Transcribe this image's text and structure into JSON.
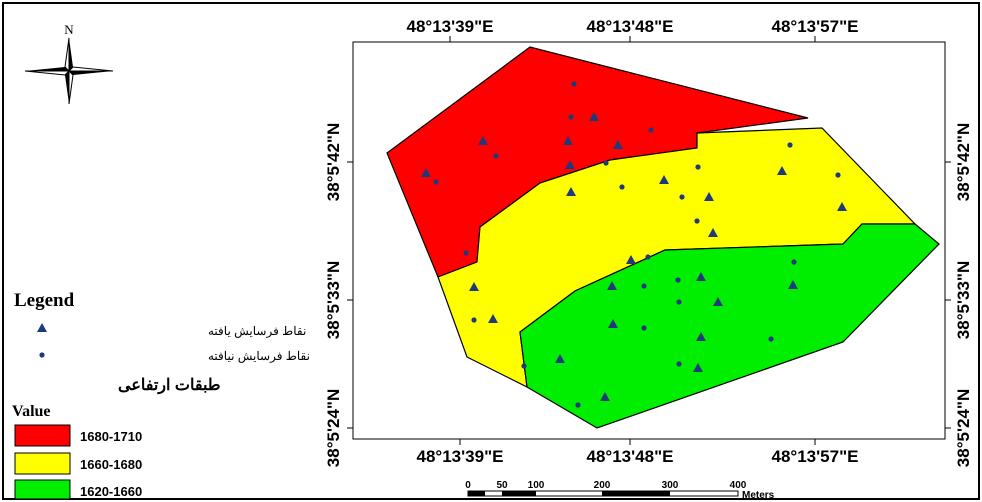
{
  "north_arrow": {
    "label": "N"
  },
  "coordinates": {
    "longitude_labels": [
      "48°13'39\"E",
      "48°13'48\"E",
      "48°13'57\"E"
    ],
    "latitude_labels": [
      "38°5'42\"N",
      "38°5'33\"N",
      "38°5'24\"N"
    ]
  },
  "legend": {
    "title": "Legend",
    "point_found": "نقاط فرسایش یافته",
    "point_not_found": "نقاط فرسایش نیافته",
    "layers_title": "طبقات ارتفاعی",
    "value_label": "Value",
    "classes": [
      {
        "label": "1680-1710",
        "color": "#ff0000"
      },
      {
        "label": "1660-1680",
        "color": "#ffff00"
      },
      {
        "label": "1620-1660",
        "color": "#00ee00"
      }
    ]
  },
  "scale_bar": {
    "ticks": [
      "0",
      "50",
      "100",
      "200",
      "300",
      "400"
    ],
    "units": "Meters"
  },
  "colors": {
    "high_zone": "#ff0000",
    "mid_zone": "#ffff00",
    "low_zone": "#00ee00",
    "marker": "#1f3a7a",
    "frame": "#000000"
  },
  "icons": {
    "found_marker": "triangle-icon",
    "not_found_marker": "dot-icon",
    "north": "compass-north-arrow-icon"
  }
}
